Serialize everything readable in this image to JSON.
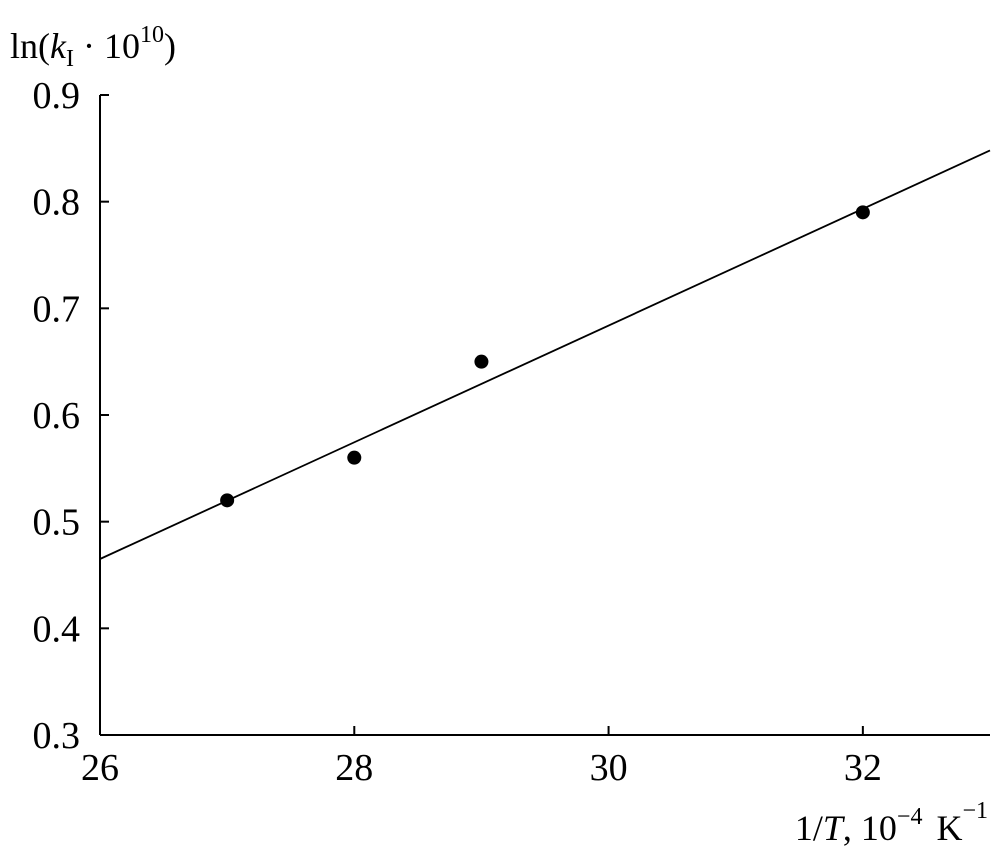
{
  "chart_data": {
    "type": "scatter",
    "ylabel": {
      "prefix": "ln(",
      "var": "k",
      "sub": "I",
      "mid": " · 10",
      "sup": "10",
      "suffix": ")"
    },
    "xlabel": {
      "prefix": "1/",
      "var": "T",
      "mid": ", 10",
      "sup1": "−4",
      "unit": "K",
      "sup2": "−1"
    },
    "xlim": [
      26,
      33
    ],
    "ylim": [
      0.3,
      0.9
    ],
    "x_ticks": [
      26,
      28,
      30,
      32
    ],
    "x_tick_labels": [
      "26",
      "28",
      "30",
      "32"
    ],
    "y_ticks": [
      0.3,
      0.4,
      0.5,
      0.6,
      0.7,
      0.8,
      0.9
    ],
    "y_tick_labels": [
      "0.3",
      "0.4",
      "0.5",
      "0.6",
      "0.7",
      "0.8",
      "0.9"
    ],
    "series": [
      {
        "points": [
          {
            "x": 27,
            "y": 0.52
          },
          {
            "x": 28,
            "y": 0.56
          },
          {
            "x": 29,
            "y": 0.65
          },
          {
            "x": 32,
            "y": 0.79
          }
        ]
      }
    ],
    "fit_line": {
      "x": [
        26,
        33
      ],
      "y": [
        0.465,
        0.848
      ]
    },
    "grid": false,
    "legend": "none"
  }
}
